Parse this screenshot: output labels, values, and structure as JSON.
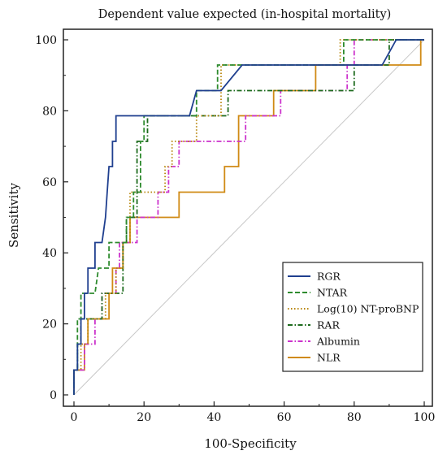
{
  "chart_data": {
    "type": "line",
    "title": "Dependent value expected (in-hospital mortality)",
    "xlabel": "100-Specificity",
    "ylabel": "Sensitivity",
    "xlim": [
      0,
      100
    ],
    "ylim": [
      0,
      100
    ],
    "xticks": [
      0,
      20,
      40,
      60,
      80,
      100
    ],
    "yticks": [
      0,
      20,
      40,
      60,
      80,
      100
    ],
    "grid": false,
    "legend_position": "bottom-right",
    "reference_line": {
      "points": [
        [
          0,
          0
        ],
        [
          100,
          100
        ]
      ],
      "color": "#c8c8c8"
    },
    "series": [
      {
        "name": "RGR",
        "color": "#1f3f8f",
        "dash": "solid",
        "points": [
          [
            0,
            0
          ],
          [
            0,
            7
          ],
          [
            1,
            7
          ],
          [
            1,
            14.3
          ],
          [
            2,
            14.3
          ],
          [
            2,
            21.4
          ],
          [
            3,
            21.4
          ],
          [
            3,
            28.6
          ],
          [
            4,
            28.6
          ],
          [
            4,
            35.7
          ],
          [
            6,
            35.7
          ],
          [
            6,
            42.9
          ],
          [
            8,
            42.9
          ],
          [
            9,
            50
          ],
          [
            9.5,
            57.1
          ],
          [
            10,
            64.3
          ],
          [
            11,
            64.3
          ],
          [
            11,
            71.4
          ],
          [
            12,
            71.4
          ],
          [
            12,
            78.6
          ],
          [
            14,
            78.6
          ],
          [
            33,
            78.6
          ],
          [
            35,
            85.7
          ],
          [
            42,
            85.7
          ],
          [
            48,
            92.9
          ],
          [
            88,
            92.9
          ],
          [
            92,
            100
          ],
          [
            100,
            100
          ]
        ]
      },
      {
        "name": "NTAR",
        "color": "#2e8b2e",
        "dash": "dashed",
        "points": [
          [
            0,
            0
          ],
          [
            0,
            7
          ],
          [
            1,
            7
          ],
          [
            1,
            21.4
          ],
          [
            2,
            21.4
          ],
          [
            2,
            28.6
          ],
          [
            6,
            28.6
          ],
          [
            7,
            35.7
          ],
          [
            10,
            35.7
          ],
          [
            10,
            42.9
          ],
          [
            15,
            42.9
          ],
          [
            15,
            50
          ],
          [
            17,
            50
          ],
          [
            17,
            57.1
          ],
          [
            19,
            57.1
          ],
          [
            19,
            71.4
          ],
          [
            20,
            71.4
          ],
          [
            20,
            78.6
          ],
          [
            35,
            78.6
          ],
          [
            35,
            85.7
          ],
          [
            41,
            85.7
          ],
          [
            41,
            92.9
          ],
          [
            77,
            92.9
          ],
          [
            77,
            100
          ],
          [
            100,
            100
          ]
        ]
      },
      {
        "name": "Log(10) NT-proBNP",
        "color": "#b8860b",
        "dash": "dotted",
        "points": [
          [
            0,
            0
          ],
          [
            0,
            7
          ],
          [
            2,
            7
          ],
          [
            2,
            14.3
          ],
          [
            4,
            14.3
          ],
          [
            4,
            21.4
          ],
          [
            9,
            21.4
          ],
          [
            9,
            28.6
          ],
          [
            12,
            28.6
          ],
          [
            12,
            35.7
          ],
          [
            14,
            35.7
          ],
          [
            14,
            42.9
          ],
          [
            16,
            42.9
          ],
          [
            16,
            57.1
          ],
          [
            26,
            57.1
          ],
          [
            26,
            64.3
          ],
          [
            28,
            64.3
          ],
          [
            28,
            71.4
          ],
          [
            35,
            71.4
          ],
          [
            35,
            78.6
          ],
          [
            42,
            78.6
          ],
          [
            42,
            92.9
          ],
          [
            76,
            92.9
          ],
          [
            76,
            100
          ],
          [
            100,
            100
          ]
        ]
      },
      {
        "name": "RAR",
        "color": "#1e6b1e",
        "dash": "dashdot",
        "points": [
          [
            0,
            0
          ],
          [
            0,
            7
          ],
          [
            1,
            7
          ],
          [
            1,
            14.3
          ],
          [
            2,
            14.3
          ],
          [
            2,
            21.4
          ],
          [
            8,
            21.4
          ],
          [
            8,
            28.6
          ],
          [
            14,
            28.6
          ],
          [
            14,
            42.9
          ],
          [
            15,
            42.9
          ],
          [
            15,
            50
          ],
          [
            18,
            50
          ],
          [
            18,
            71.4
          ],
          [
            21,
            71.4
          ],
          [
            21,
            78.6
          ],
          [
            44,
            78.6
          ],
          [
            44,
            85.7
          ],
          [
            80,
            85.7
          ],
          [
            80,
            92.9
          ],
          [
            90,
            92.9
          ],
          [
            90,
            100
          ],
          [
            100,
            100
          ]
        ]
      },
      {
        "name": "Albumin",
        "color": "#cc33cc",
        "dash": "dashdot",
        "points": [
          [
            0,
            0
          ],
          [
            0,
            7
          ],
          [
            3,
            7
          ],
          [
            3,
            14.3
          ],
          [
            6,
            14.3
          ],
          [
            6,
            21.4
          ],
          [
            8,
            21.4
          ],
          [
            8,
            28.6
          ],
          [
            12,
            28.6
          ],
          [
            12,
            35.7
          ],
          [
            13,
            35.7
          ],
          [
            13,
            42.9
          ],
          [
            18,
            42.9
          ],
          [
            18,
            50
          ],
          [
            24,
            50
          ],
          [
            24,
            57.1
          ],
          [
            27,
            57.1
          ],
          [
            27,
            64.3
          ],
          [
            30,
            64.3
          ],
          [
            30,
            71.4
          ],
          [
            49,
            71.4
          ],
          [
            49,
            78.6
          ],
          [
            59,
            78.6
          ],
          [
            59,
            85.7
          ],
          [
            78,
            85.7
          ],
          [
            78,
            92.9
          ],
          [
            80,
            92.9
          ],
          [
            80,
            100
          ],
          [
            100,
            100
          ]
        ]
      },
      {
        "name": "NLR",
        "color": "#d08a14",
        "dash": "solid",
        "points": [
          [
            0,
            0
          ],
          [
            0,
            7
          ],
          [
            3,
            7
          ],
          [
            3,
            14.3
          ],
          [
            4,
            14.3
          ],
          [
            4,
            21.4
          ],
          [
            10,
            21.4
          ],
          [
            10,
            28.6
          ],
          [
            11,
            28.6
          ],
          [
            11,
            35.7
          ],
          [
            14,
            35.7
          ],
          [
            14,
            42.9
          ],
          [
            16,
            42.9
          ],
          [
            16,
            50
          ],
          [
            30,
            50
          ],
          [
            30,
            57.1
          ],
          [
            43,
            57.1
          ],
          [
            43,
            64.3
          ],
          [
            47,
            64.3
          ],
          [
            47,
            78.6
          ],
          [
            57,
            78.6
          ],
          [
            57,
            85.7
          ],
          [
            69,
            85.7
          ],
          [
            69,
            92.9
          ],
          [
            99,
            92.9
          ],
          [
            99,
            100
          ],
          [
            100,
            100
          ]
        ]
      }
    ]
  }
}
